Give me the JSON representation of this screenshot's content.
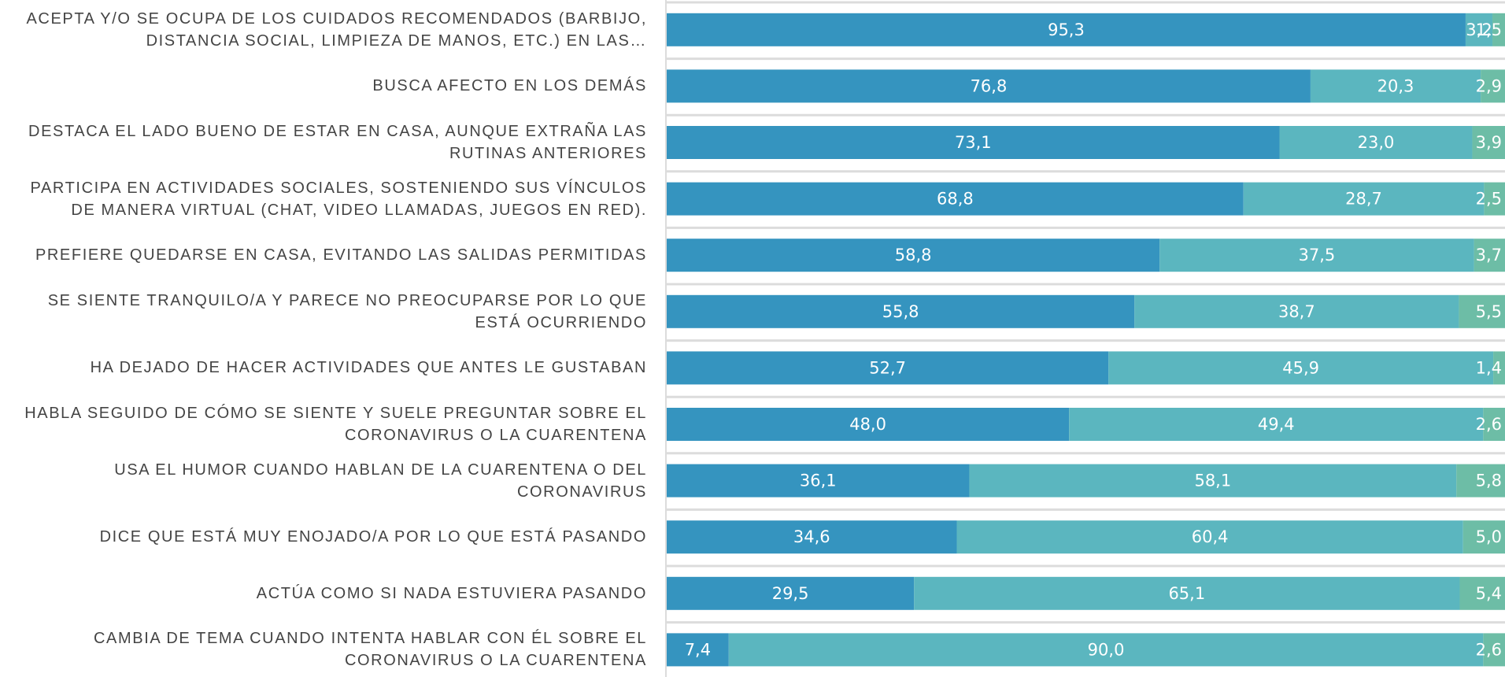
{
  "chart_data": {
    "type": "stacked-bar-horizontal",
    "categories": [
      "ACEPTA Y/O SE OCUPA DE LOS CUIDADOS RECOMENDADOS (BARBIJO, DISTANCIA SOCIAL, LIMPIEZA DE MANOS, ETC.) EN LAS…",
      "BUSCA AFECTO EN LOS DEMÁS",
      "DESTACA EL LADO BUENO DE ESTAR EN CASA, AUNQUE EXTRAÑA LAS RUTINAS ANTERIORES",
      "PARTICIPA EN ACTIVIDADES SOCIALES, SOSTENIENDO SUS VÍNCULOS DE MANERA VIRTUAL (CHAT, VIDEO LLAMADAS, JUEGOS EN RED).",
      "PREFIERE QUEDARSE EN CASA, EVITANDO LAS SALIDAS PERMITIDAS",
      "SE SIENTE TRANQUILO/A Y PARECE NO PREOCUPARSE POR LO QUE ESTÁ OCURRIENDO",
      "HA DEJADO DE HACER ACTIVIDADES QUE ANTES LE GUSTABAN",
      "HABLA SEGUIDO DE CÓMO SE SIENTE Y SUELE PREGUNTAR SOBRE EL CORONAVIRUS O LA CUARENTENA",
      "USA EL HUMOR CUANDO HABLAN DE LA CUARENTENA O DEL CORONAVIRUS",
      "DICE QUE ESTÁ MUY ENOJADO/A POR LO QUE ESTÁ PASANDO",
      "ACTÚA COMO SI NADA ESTUVIERA PASANDO",
      "CAMBIA DE TEMA CUANDO INTENTA HABLAR CON ÉL SOBRE EL CORONAVIRUS O LA CUARENTENA"
    ],
    "series": [
      {
        "color": "#3594bf",
        "values": [
          95.3,
          76.8,
          73.1,
          68.8,
          58.8,
          55.8,
          52.7,
          48.0,
          36.1,
          34.6,
          29.5,
          7.4
        ],
        "value_labels": [
          "95,3",
          "76,8",
          "73,1",
          "68,8",
          "58,8",
          "55,8",
          "52,7",
          "48,0",
          "36,1",
          "34,6",
          "29,5",
          "7,4"
        ]
      },
      {
        "color": "#5bb6bf",
        "values": [
          3.2,
          20.3,
          23.0,
          28.7,
          37.5,
          38.7,
          45.9,
          49.4,
          58.1,
          60.4,
          65.1,
          90.0
        ],
        "value_labels": [
          "3,2",
          "20,3",
          "23,0",
          "28,7",
          "37,5",
          "38,7",
          "45,9",
          "49,4",
          "58,1",
          "60,4",
          "65,1",
          "90,0"
        ]
      },
      {
        "color": "#6dbda6",
        "values": [
          1.5,
          2.9,
          3.9,
          2.5,
          3.7,
          5.5,
          1.4,
          2.6,
          5.8,
          5.0,
          5.4,
          2.6
        ],
        "value_labels": [
          "1,5",
          "2,9",
          "3,9",
          "2,5",
          "3,7",
          "5,5",
          "1,4",
          "2,6",
          "5,8",
          "5,0",
          "5,4",
          "2,6"
        ]
      }
    ],
    "xlim": [
      0,
      100
    ]
  }
}
